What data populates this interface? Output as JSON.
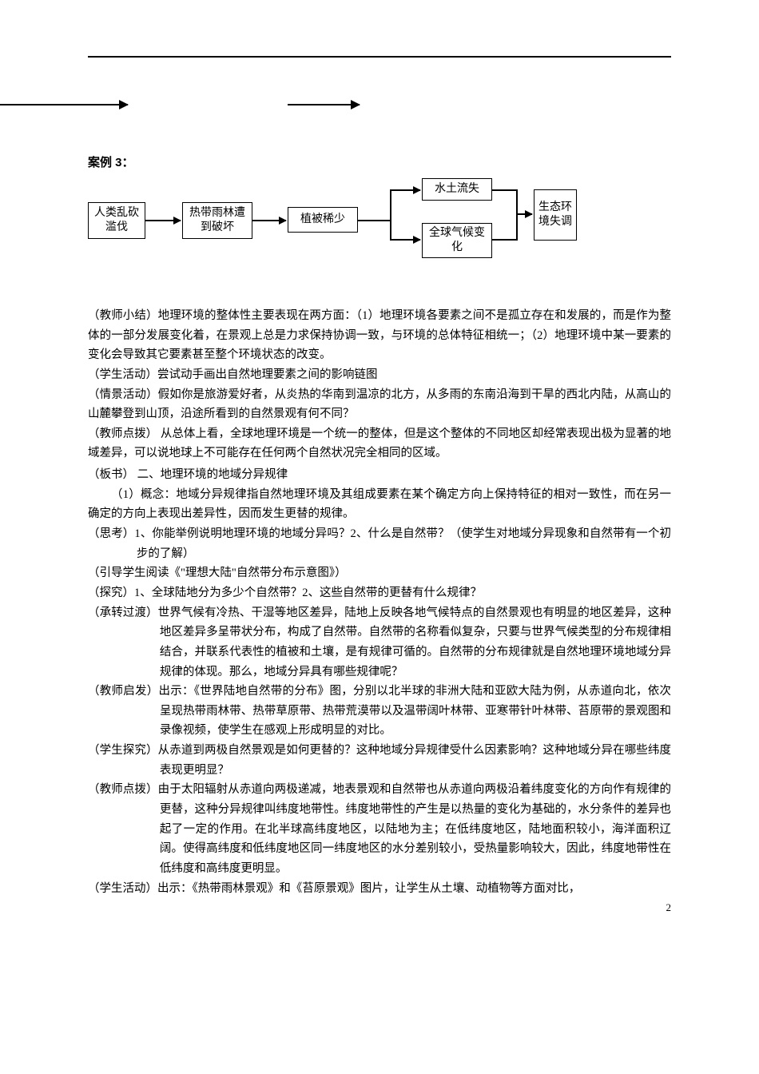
{
  "top": {
    "caseLabel": "案例 3："
  },
  "flow": {
    "b1": "人类乱砍滥伐",
    "b2": "热带雨林遭到破坏",
    "b3": "植被稀少",
    "b4": "水土流失",
    "b5": "全球气候变化",
    "b6": "生态环境失调"
  },
  "body": {
    "p1": "（教师小结）地理环境的整体性主要表现在两方面：（1）地理环境各要素之间不是孤立存在和发展的，而是作为整体的一部分发展变化着，在景观上总是力求保持协调一致，与环境的总体特征相统一；（2）地理环境中某一要素的变化会导致其它要素甚至整个环境状态的改变。",
    "p2": "（学生活动）尝试动手画出自然地理要素之间的影响链图",
    "p3": "（情景活动）假如你是旅游爱好者，从炎热的华南到温凉的北方，从多雨的东南沿海到干旱的西北内陆，从高山的山麓攀登到山顶，沿途所看到的自然景观有何不同？",
    "p4": "（教师点拨） 从总体上看，全球地理环境是一个统一的整体，但是这个整体的不同地区却经常表现出极为显著的地域差异，可以说地球上不可能存在任何两个自然状况完全相同的区域。",
    "p5": "（板书）  二、地理环境的地域分异规律",
    "p6": "（1）概念：地域分异规律指自然地理环境及其组成要素在某个确定方向上保持特征的相对一致性，而在另一确定的方向上表现出差异性，因而发生更替的规律。",
    "p7": "（思考）1、你能举例说明地理环境的地域分异吗？2、什么是自然带？（使学生对地域分异现象和自然带有一个初步的了解）",
    "p8": "（引导学生阅读《\"理想大陆\"自然带分布示意图》）",
    "p9": "（探究）1、全球陆地分为多少个自然带？2、这些自然带的更替有什么规律？",
    "p10": "（承转过渡）世界气候有冷热、干湿等地区差异，陆地上反映各地气候特点的自然景观也有明显的地区差异，这种地区差异多呈带状分布，构成了自然带。自然带的名称看似复杂，只要与世界气候类型的分布规律相结合，并联系代表性的植被和土壤，是有规律可循的。自然带的分布规律就是自然地理环境地域分异规律的体现。那么，地域分异具有哪些规律呢？",
    "p11": "（教师启发）出示：《世界陆地自然带的分布》图，分别以北半球的非洲大陆和亚欧大陆为例，从赤道向北，依次呈现热带雨林带、热带草原带、热带荒漠带以及温带阔叶林带、亚寒带针叶林带、苔原带的景观图和录像视频，使学生在感观上形成明显的对比。",
    "p12": "（学生探究）从赤道到两极自然景观是如何更替的？这种地域分异规律受什么因素影响？这种地域分异在哪些纬度表现更明显？",
    "p13": "（教师点拨）由于太阳辐射从赤道向两极递减，地表景观和自然带也从赤道向两极沿着纬度变化的方向作有规律的更替，这种分异规律叫纬度地带性。纬度地带性的产生是以热量的变化为基础的，水分条件的差异也起了一定的作用。在北半球高纬度地区，以陆地为主；在低纬度地区，陆地面积较小，海洋面积辽阔。使得高纬度和低纬度地区同一纬度地区的水分差别较小，受热量影响较大，因此，纬度地带性在低纬度和高纬度更明显。",
    "p14": "（学生活动）出示：《热带雨林景观》和《苔原景观》图片，让学生从土壤、动植物等方面对比，"
  },
  "pageNumber": "2"
}
